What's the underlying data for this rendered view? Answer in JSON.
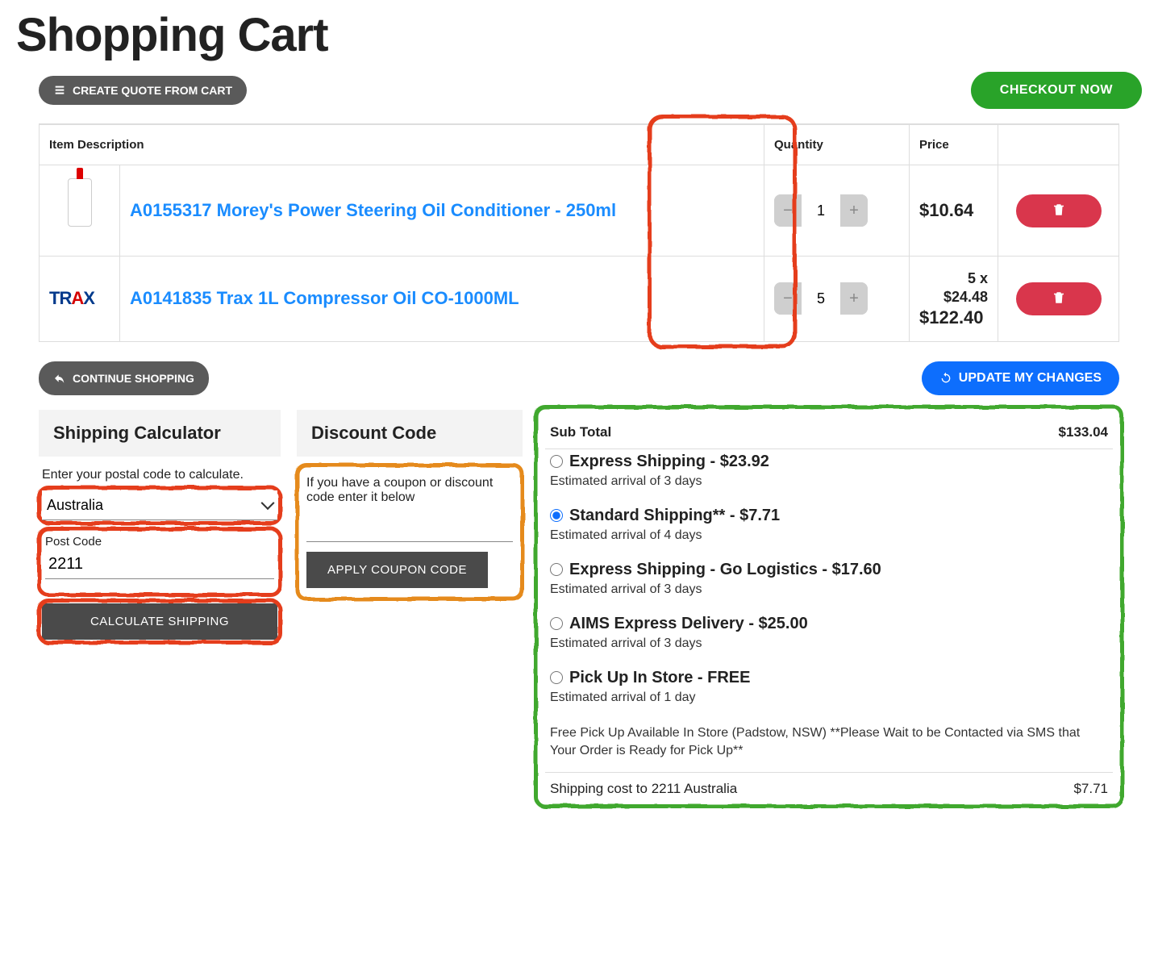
{
  "page_title": "Shopping Cart",
  "buttons": {
    "create_quote": "CREATE QUOTE FROM CART",
    "checkout": "CHECKOUT NOW",
    "continue": "CONTINUE SHOPPING",
    "update": "UPDATE MY CHANGES",
    "calc_shipping": "CALCULATE SHIPPING",
    "apply_coupon": "APPLY COUPON CODE"
  },
  "table": {
    "headers": {
      "desc": "Item Description",
      "qty": "Quantity",
      "price": "Price"
    },
    "rows": [
      {
        "name": "A0155317 Morey's Power Steering Oil Conditioner - 250ml",
        "qty": "1",
        "price": "$10.64",
        "multi": ""
      },
      {
        "name": "A0141835 Trax 1L Compressor Oil CO-1000ML",
        "qty": "5",
        "price": "$122.40",
        "multi": "5 x $24.48"
      }
    ]
  },
  "shipping_calc": {
    "title": "Shipping Calculator",
    "hint": "Enter your postal code to calculate.",
    "country": "Australia",
    "post_label": "Post Code",
    "post_value": "2211"
  },
  "discount": {
    "title": "Discount Code",
    "hint": "If you have a coupon or discount code enter it below"
  },
  "summary": {
    "sub_label": "Sub Total",
    "sub_value": "$133.04",
    "options": [
      {
        "label": "Express Shipping - $23.92",
        "est": "Estimated arrival of 3 days",
        "checked": false
      },
      {
        "label": "Standard Shipping** - $7.71",
        "est": "Estimated arrival of 4 days",
        "checked": true
      },
      {
        "label": "Express Shipping - Go Logistics - $17.60",
        "est": "Estimated arrival of 3 days",
        "checked": false
      },
      {
        "label": "AIMS Express Delivery - $25.00",
        "est": "Estimated arrival of 3 days",
        "checked": false
      },
      {
        "label": "Pick Up In Store - FREE",
        "est": "Estimated arrival of 1 day",
        "checked": false
      }
    ],
    "note": "Free Pick Up Available In Store (Padstow, NSW) **Please Wait to be Contacted via SMS that Your Order is Ready for Pick Up**",
    "cost_label": "Shipping cost to 2211 Australia",
    "cost_value": "$7.71"
  },
  "colors": {
    "green": "#29a329",
    "blue": "#0d6efd",
    "red": "#d9364c",
    "link": "#1a8cff",
    "highlight_red": "#e53e1a",
    "highlight_orange": "#e58a1a",
    "highlight_green": "#3fa82e"
  }
}
